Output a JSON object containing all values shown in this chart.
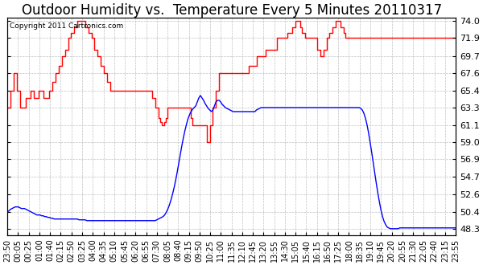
{
  "title": "Outdoor Humidity vs.  Temperature Every 5 Minutes 20110317",
  "copyright": "Copyright 2011 Cartronics.com",
  "yticks": [
    48.3,
    50.4,
    52.6,
    54.7,
    56.9,
    59.0,
    61.1,
    63.3,
    65.4,
    67.6,
    69.7,
    71.9,
    74.0
  ],
  "time_labels": [
    "23:50",
    "00:05",
    "00:25",
    "01:00",
    "01:40",
    "02:15",
    "02:50",
    "03:25",
    "04:00",
    "04:35",
    "05:10",
    "05:45",
    "06:20",
    "06:55",
    "07:30",
    "08:05",
    "08:40",
    "09:15",
    "09:50",
    "10:25",
    "11:00",
    "11:35",
    "12:10",
    "12:45",
    "13:20",
    "13:55",
    "14:30",
    "15:05",
    "15:40",
    "16:15",
    "16:50",
    "17:25",
    "18:00",
    "18:35",
    "19:10",
    "19:45",
    "20:20",
    "20:55",
    "21:30",
    "22:05",
    "22:40",
    "23:15",
    "23:55"
  ],
  "humidity_color": "#ff0000",
  "temperature_color": "#0000ff",
  "background_color": "#ffffff",
  "grid_color": "#b0b0b0",
  "title_fontsize": 12,
  "ylabel_fontsize": 8,
  "xlabel_fontsize": 7,
  "copyright_fontsize": 6.5,
  "humidity": [
    63.3,
    63.3,
    65.4,
    65.4,
    67.6,
    67.6,
    65.4,
    65.4,
    63.3,
    63.3,
    63.3,
    63.3,
    64.5,
    64.5,
    64.5,
    65.4,
    65.4,
    64.5,
    64.5,
    64.5,
    65.4,
    65.4,
    65.4,
    64.5,
    64.5,
    64.5,
    64.5,
    65.4,
    65.4,
    66.5,
    66.5,
    67.6,
    67.6,
    68.5,
    68.5,
    69.7,
    69.7,
    70.5,
    70.5,
    71.9,
    71.9,
    72.5,
    72.5,
    73.2,
    73.2,
    74.0,
    74.0,
    74.0,
    74.0,
    74.0,
    73.2,
    73.2,
    72.5,
    72.5,
    71.9,
    71.9,
    70.5,
    70.5,
    69.7,
    69.7,
    68.5,
    68.5,
    67.6,
    67.6,
    66.5,
    66.5,
    65.4,
    65.4,
    65.4,
    65.4,
    65.4,
    65.4,
    65.4,
    65.4,
    65.4,
    65.4,
    65.4,
    65.4,
    65.4,
    65.4,
    65.4,
    65.4,
    65.4,
    65.4,
    65.4,
    65.4,
    65.4,
    65.4,
    65.4,
    65.4,
    65.4,
    65.4,
    65.4,
    64.5,
    64.5,
    63.3,
    63.3,
    62.0,
    61.5,
    61.1,
    61.1,
    61.5,
    62.0,
    63.3,
    63.3,
    63.3,
    63.3,
    63.3,
    63.3,
    63.3,
    63.3,
    63.3,
    63.3,
    63.3,
    63.3,
    63.3,
    63.3,
    63.3,
    62.0,
    61.1,
    61.1,
    61.1,
    61.1,
    61.1,
    61.1,
    61.1,
    61.1,
    61.1,
    59.0,
    59.0,
    61.1,
    61.1,
    63.3,
    63.3,
    65.4,
    65.4,
    67.6,
    67.6,
    67.6,
    67.6,
    67.6,
    67.6,
    67.6,
    67.6,
    67.6,
    67.6,
    67.6,
    67.6,
    67.6,
    67.6,
    67.6,
    67.6,
    67.6,
    67.6,
    67.6,
    68.5,
    68.5,
    68.5,
    68.5,
    68.5,
    69.7,
    69.7,
    69.7,
    69.7,
    69.7,
    69.7,
    70.5,
    70.5,
    70.5,
    70.5,
    70.5,
    70.5,
    70.5,
    71.9,
    71.9,
    71.9,
    71.9,
    71.9,
    71.9,
    71.9,
    72.5,
    72.5,
    72.5,
    73.2,
    73.2,
    74.0,
    74.0,
    74.0,
    73.2,
    72.5,
    72.5,
    71.9,
    71.9,
    71.9,
    71.9,
    71.9,
    71.9,
    71.9,
    71.9,
    70.5,
    70.5,
    69.7,
    69.7,
    70.5,
    70.5,
    71.9,
    71.9,
    72.5,
    72.5,
    73.2,
    73.2,
    74.0,
    74.0,
    74.0,
    73.2,
    73.2,
    72.5,
    71.9,
    71.9,
    71.9,
    71.9,
    71.9,
    71.9,
    71.9,
    71.9,
    71.9,
    71.9,
    71.9,
    71.9,
    71.9,
    71.9,
    71.9,
    71.9,
    71.9,
    71.9,
    71.9,
    71.9,
    71.9,
    71.9,
    71.9,
    71.9,
    71.9,
    71.9,
    71.9,
    71.9,
    71.9,
    71.9,
    71.9,
    71.9,
    71.9,
    71.9,
    71.9,
    71.9,
    71.9,
    71.9,
    71.9,
    71.9,
    71.9,
    71.9,
    71.9,
    71.9,
    71.9,
    71.9,
    71.9,
    71.9,
    71.9,
    71.9,
    71.9,
    71.9,
    71.9,
    71.9,
    71.9,
    71.9,
    71.9,
    71.9,
    71.9,
    71.9,
    71.9,
    71.9,
    71.9,
    71.9,
    71.9,
    71.9,
    71.9,
    71.9,
    71.9,
    71.9,
    71.9,
    71.9
  ],
  "temperature": [
    50.4,
    50.5,
    50.7,
    50.8,
    50.9,
    51.0,
    51.0,
    51.0,
    50.9,
    50.8,
    50.8,
    50.8,
    50.7,
    50.6,
    50.5,
    50.4,
    50.3,
    50.2,
    50.1,
    50.0,
    50.0,
    50.0,
    49.9,
    49.9,
    49.8,
    49.8,
    49.7,
    49.7,
    49.6,
    49.6,
    49.5,
    49.5,
    49.5,
    49.5,
    49.5,
    49.5,
    49.5,
    49.5,
    49.5,
    49.5,
    49.5,
    49.5,
    49.5,
    49.5,
    49.5,
    49.5,
    49.4,
    49.4,
    49.4,
    49.4,
    49.4,
    49.3,
    49.3,
    49.3,
    49.3,
    49.3,
    49.3,
    49.3,
    49.3,
    49.3,
    49.3,
    49.3,
    49.3,
    49.3,
    49.3,
    49.3,
    49.3,
    49.3,
    49.3,
    49.3,
    49.3,
    49.3,
    49.3,
    49.3,
    49.3,
    49.3,
    49.3,
    49.3,
    49.3,
    49.3,
    49.3,
    49.3,
    49.3,
    49.3,
    49.3,
    49.3,
    49.3,
    49.3,
    49.3,
    49.3,
    49.3,
    49.3,
    49.3,
    49.3,
    49.3,
    49.3,
    49.4,
    49.5,
    49.6,
    49.7,
    49.8,
    50.0,
    50.3,
    50.7,
    51.2,
    51.8,
    52.5,
    53.3,
    54.2,
    55.2,
    56.3,
    57.4,
    58.5,
    59.5,
    60.4,
    61.2,
    61.9,
    62.4,
    62.8,
    63.1,
    63.3,
    63.5,
    64.0,
    64.5,
    64.8,
    64.5,
    64.2,
    63.8,
    63.5,
    63.2,
    63.0,
    62.8,
    63.0,
    63.5,
    64.0,
    64.2,
    64.2,
    64.0,
    63.7,
    63.5,
    63.3,
    63.2,
    63.1,
    63.0,
    62.9,
    62.8,
    62.8,
    62.8,
    62.8,
    62.8,
    62.8,
    62.8,
    62.8,
    62.8,
    62.8,
    62.8,
    62.8,
    62.8,
    62.8,
    62.8,
    63.0,
    63.1,
    63.2,
    63.3,
    63.3,
    63.3,
    63.3,
    63.3,
    63.3,
    63.3,
    63.3,
    63.3,
    63.3,
    63.3,
    63.3,
    63.3,
    63.3,
    63.3,
    63.3,
    63.3,
    63.3,
    63.3,
    63.3,
    63.3,
    63.3,
    63.3,
    63.3,
    63.3,
    63.3,
    63.3,
    63.3,
    63.3,
    63.3,
    63.3,
    63.3,
    63.3,
    63.3,
    63.3,
    63.3,
    63.3,
    63.3,
    63.3,
    63.3,
    63.3,
    63.3,
    63.3,
    63.3,
    63.3,
    63.3,
    63.3,
    63.3,
    63.3,
    63.3,
    63.3,
    63.3,
    63.3,
    63.3,
    63.3,
    63.3,
    63.3,
    63.3,
    63.3,
    63.3,
    63.3,
    63.3,
    63.3,
    63.3,
    63.2,
    63.0,
    62.6,
    62.0,
    61.2,
    60.2,
    59.0,
    57.8,
    56.5,
    55.2,
    53.9,
    52.7,
    51.6,
    50.6,
    49.8,
    49.2,
    48.8,
    48.5,
    48.4,
    48.3,
    48.3,
    48.3,
    48.3,
    48.3,
    48.3,
    48.4,
    48.4,
    48.4,
    48.4,
    48.4,
    48.4,
    48.4,
    48.4,
    48.4,
    48.4,
    48.4,
    48.4,
    48.4,
    48.4,
    48.4,
    48.4,
    48.4,
    48.4,
    48.4,
    48.4,
    48.4,
    48.4,
    48.4,
    48.4,
    48.4,
    48.4,
    48.4,
    48.4,
    48.4,
    48.4,
    48.4,
    48.4,
    48.4,
    48.4,
    48.4,
    48.4,
    48.4
  ]
}
